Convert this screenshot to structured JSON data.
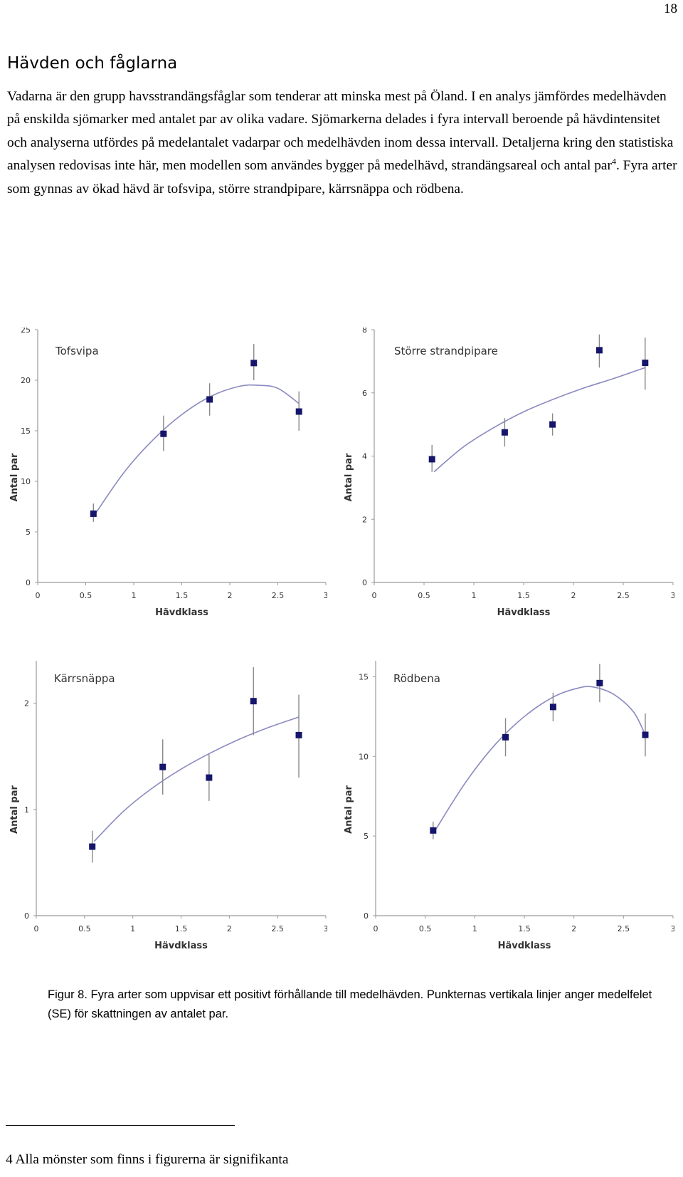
{
  "page_number": "18",
  "heading": "Hävden och fåglarna",
  "paragraph": {
    "part1": "Vadarna är den grupp havsstrandängsfåglar som tenderar att minska mest på Öland. I en analys jämfördes medelhävden på enskilda sjömarker med antalet par av olika vadare. Sjömarkerna delades i fyra intervall beroende på hävdintensitet och analyserna utfördes på medelantalet vadarpar och medelhävden inom dessa intervall. Detaljerna kring den statistiska analysen redovisas inte här, men modellen som användes bygger på medelhävd, strandängsareal och antal par",
    "footnote_ref": "4",
    "part2": ". Fyra arter som gynnas av ökad hävd är tofsvipa, större strandpipare, kärrsnäppa och rödbena."
  },
  "colors": {
    "marker": "#15156b",
    "curve": "#8a8ac0",
    "error_bar": "#888888",
    "axis": "#9a9a9a"
  },
  "chart_data": [
    {
      "type": "scatter",
      "title": "Tofsvipa",
      "xlabel": "Hävdklass",
      "ylabel": "Antal par",
      "xlim": [
        0,
        3
      ],
      "ylim": [
        0,
        25
      ],
      "xticks": [
        0,
        0.5,
        1,
        1.5,
        2,
        2.5,
        3
      ],
      "xtick_labels": [
        "0",
        "0.5",
        "1",
        "1.5",
        "2",
        "2.5",
        "3"
      ],
      "yticks": [
        0,
        5,
        10,
        15,
        20,
        25
      ],
      "ytick_labels": [
        "0",
        "5",
        "10",
        "15",
        "20",
        "25"
      ],
      "points": [
        {
          "x": 0.58,
          "y": 6.8,
          "low": 6.0,
          "high": 7.8
        },
        {
          "x": 1.31,
          "y": 14.7,
          "low": 13.0,
          "high": 16.5
        },
        {
          "x": 1.79,
          "y": 18.1,
          "low": 16.5,
          "high": 19.7
        },
        {
          "x": 2.25,
          "y": 21.7,
          "low": 20.0,
          "high": 23.6
        },
        {
          "x": 2.72,
          "y": 16.9,
          "low": 15.0,
          "high": 18.9
        }
      ],
      "fit_curve": [
        [
          0.6,
          6.8
        ],
        [
          0.9,
          10.9
        ],
        [
          1.2,
          14.1
        ],
        [
          1.5,
          16.6
        ],
        [
          1.8,
          18.4
        ],
        [
          2.1,
          19.4
        ],
        [
          2.3,
          19.5
        ],
        [
          2.5,
          19.2
        ],
        [
          2.72,
          17.7
        ]
      ],
      "grid": false
    },
    {
      "type": "scatter",
      "title": "Större strandpipare",
      "xlabel": "Hävdklass",
      "ylabel": "Antal par",
      "xlim": [
        0,
        3
      ],
      "ylim": [
        0,
        8
      ],
      "xticks": [
        0,
        0.5,
        1,
        1.5,
        2,
        2.5,
        3
      ],
      "xtick_labels": [
        "0",
        "0.5",
        "1",
        "1.5",
        "2",
        "2.5",
        "3"
      ],
      "yticks": [
        0,
        2,
        4,
        6,
        8
      ],
      "ytick_labels": [
        "0",
        "2",
        "4",
        "6",
        "8"
      ],
      "points": [
        {
          "x": 0.58,
          "y": 3.9,
          "low": 3.5,
          "high": 4.35
        },
        {
          "x": 1.31,
          "y": 4.75,
          "low": 4.3,
          "high": 5.2
        },
        {
          "x": 1.79,
          "y": 5.0,
          "low": 4.65,
          "high": 5.35
        },
        {
          "x": 2.26,
          "y": 7.35,
          "low": 6.8,
          "high": 7.85
        },
        {
          "x": 2.72,
          "y": 6.95,
          "low": 6.1,
          "high": 7.75
        }
      ],
      "fit_curve": [
        [
          0.6,
          3.5
        ],
        [
          0.9,
          4.3
        ],
        [
          1.2,
          4.9
        ],
        [
          1.5,
          5.4
        ],
        [
          1.8,
          5.8
        ],
        [
          2.1,
          6.15
        ],
        [
          2.4,
          6.45
        ],
        [
          2.72,
          6.8
        ]
      ],
      "grid": false
    },
    {
      "type": "scatter",
      "title": "Kärrsnäppa",
      "xlabel": "Hävdklass",
      "ylabel": "Antal par",
      "xlim": [
        0,
        3
      ],
      "ylim": [
        0,
        2.4
      ],
      "xticks": [
        0,
        0.5,
        1,
        1.5,
        2,
        2.5,
        3
      ],
      "xtick_labels": [
        "0",
        "0.5",
        "1",
        "1.5",
        "2",
        "2.5",
        "3"
      ],
      "yticks": [
        0,
        1,
        2
      ],
      "ytick_labels": [
        "0",
        "1",
        "2"
      ],
      "points": [
        {
          "x": 0.58,
          "y": 0.65,
          "low": 0.5,
          "high": 0.8
        },
        {
          "x": 1.31,
          "y": 1.4,
          "low": 1.14,
          "high": 1.66
        },
        {
          "x": 1.79,
          "y": 1.3,
          "low": 1.08,
          "high": 1.52
        },
        {
          "x": 2.25,
          "y": 2.02,
          "low": 1.7,
          "high": 2.34
        },
        {
          "x": 2.72,
          "y": 1.7,
          "low": 1.3,
          "high": 2.08
        }
      ],
      "fit_curve": [
        [
          0.6,
          0.7
        ],
        [
          0.9,
          0.98
        ],
        [
          1.2,
          1.2
        ],
        [
          1.5,
          1.38
        ],
        [
          1.8,
          1.53
        ],
        [
          2.1,
          1.66
        ],
        [
          2.4,
          1.77
        ],
        [
          2.72,
          1.87
        ]
      ],
      "grid": false
    },
    {
      "type": "scatter",
      "title": "Rödbena",
      "xlabel": "Hävdklass",
      "ylabel": "Antal par",
      "xlim": [
        0,
        3
      ],
      "ylim": [
        0,
        16
      ],
      "xticks": [
        0,
        0.5,
        1,
        1.5,
        2,
        2.5,
        3
      ],
      "xtick_labels": [
        "0",
        "0.5",
        "1",
        "1.5",
        "2",
        "2.5",
        "3"
      ],
      "yticks": [
        0,
        5,
        10,
        15
      ],
      "ytick_labels": [
        "0",
        "5",
        "10",
        "15"
      ],
      "points": [
        {
          "x": 0.58,
          "y": 5.35,
          "low": 4.8,
          "high": 5.9
        },
        {
          "x": 1.31,
          "y": 11.2,
          "low": 10.0,
          "high": 12.4
        },
        {
          "x": 1.79,
          "y": 13.1,
          "low": 12.2,
          "high": 14.0
        },
        {
          "x": 2.26,
          "y": 14.6,
          "low": 13.4,
          "high": 15.8
        },
        {
          "x": 2.72,
          "y": 11.35,
          "low": 10.0,
          "high": 12.7
        }
      ],
      "fit_curve": [
        [
          0.6,
          5.35
        ],
        [
          0.9,
          8.3
        ],
        [
          1.2,
          10.7
        ],
        [
          1.5,
          12.5
        ],
        [
          1.8,
          13.75
        ],
        [
          2.05,
          14.3
        ],
        [
          2.2,
          14.35
        ],
        [
          2.4,
          13.9
        ],
        [
          2.6,
          12.8
        ],
        [
          2.72,
          11.35
        ]
      ],
      "grid": false
    }
  ],
  "caption": "Figur 8. Fyra arter som uppvisar ett positivt förhållande till medelhävden. Punkternas vertikala linjer anger medelfelet (SE) för skattningen av antalet par.",
  "footnote": "4 Alla mönster som finns i figurerna är signifikanta"
}
